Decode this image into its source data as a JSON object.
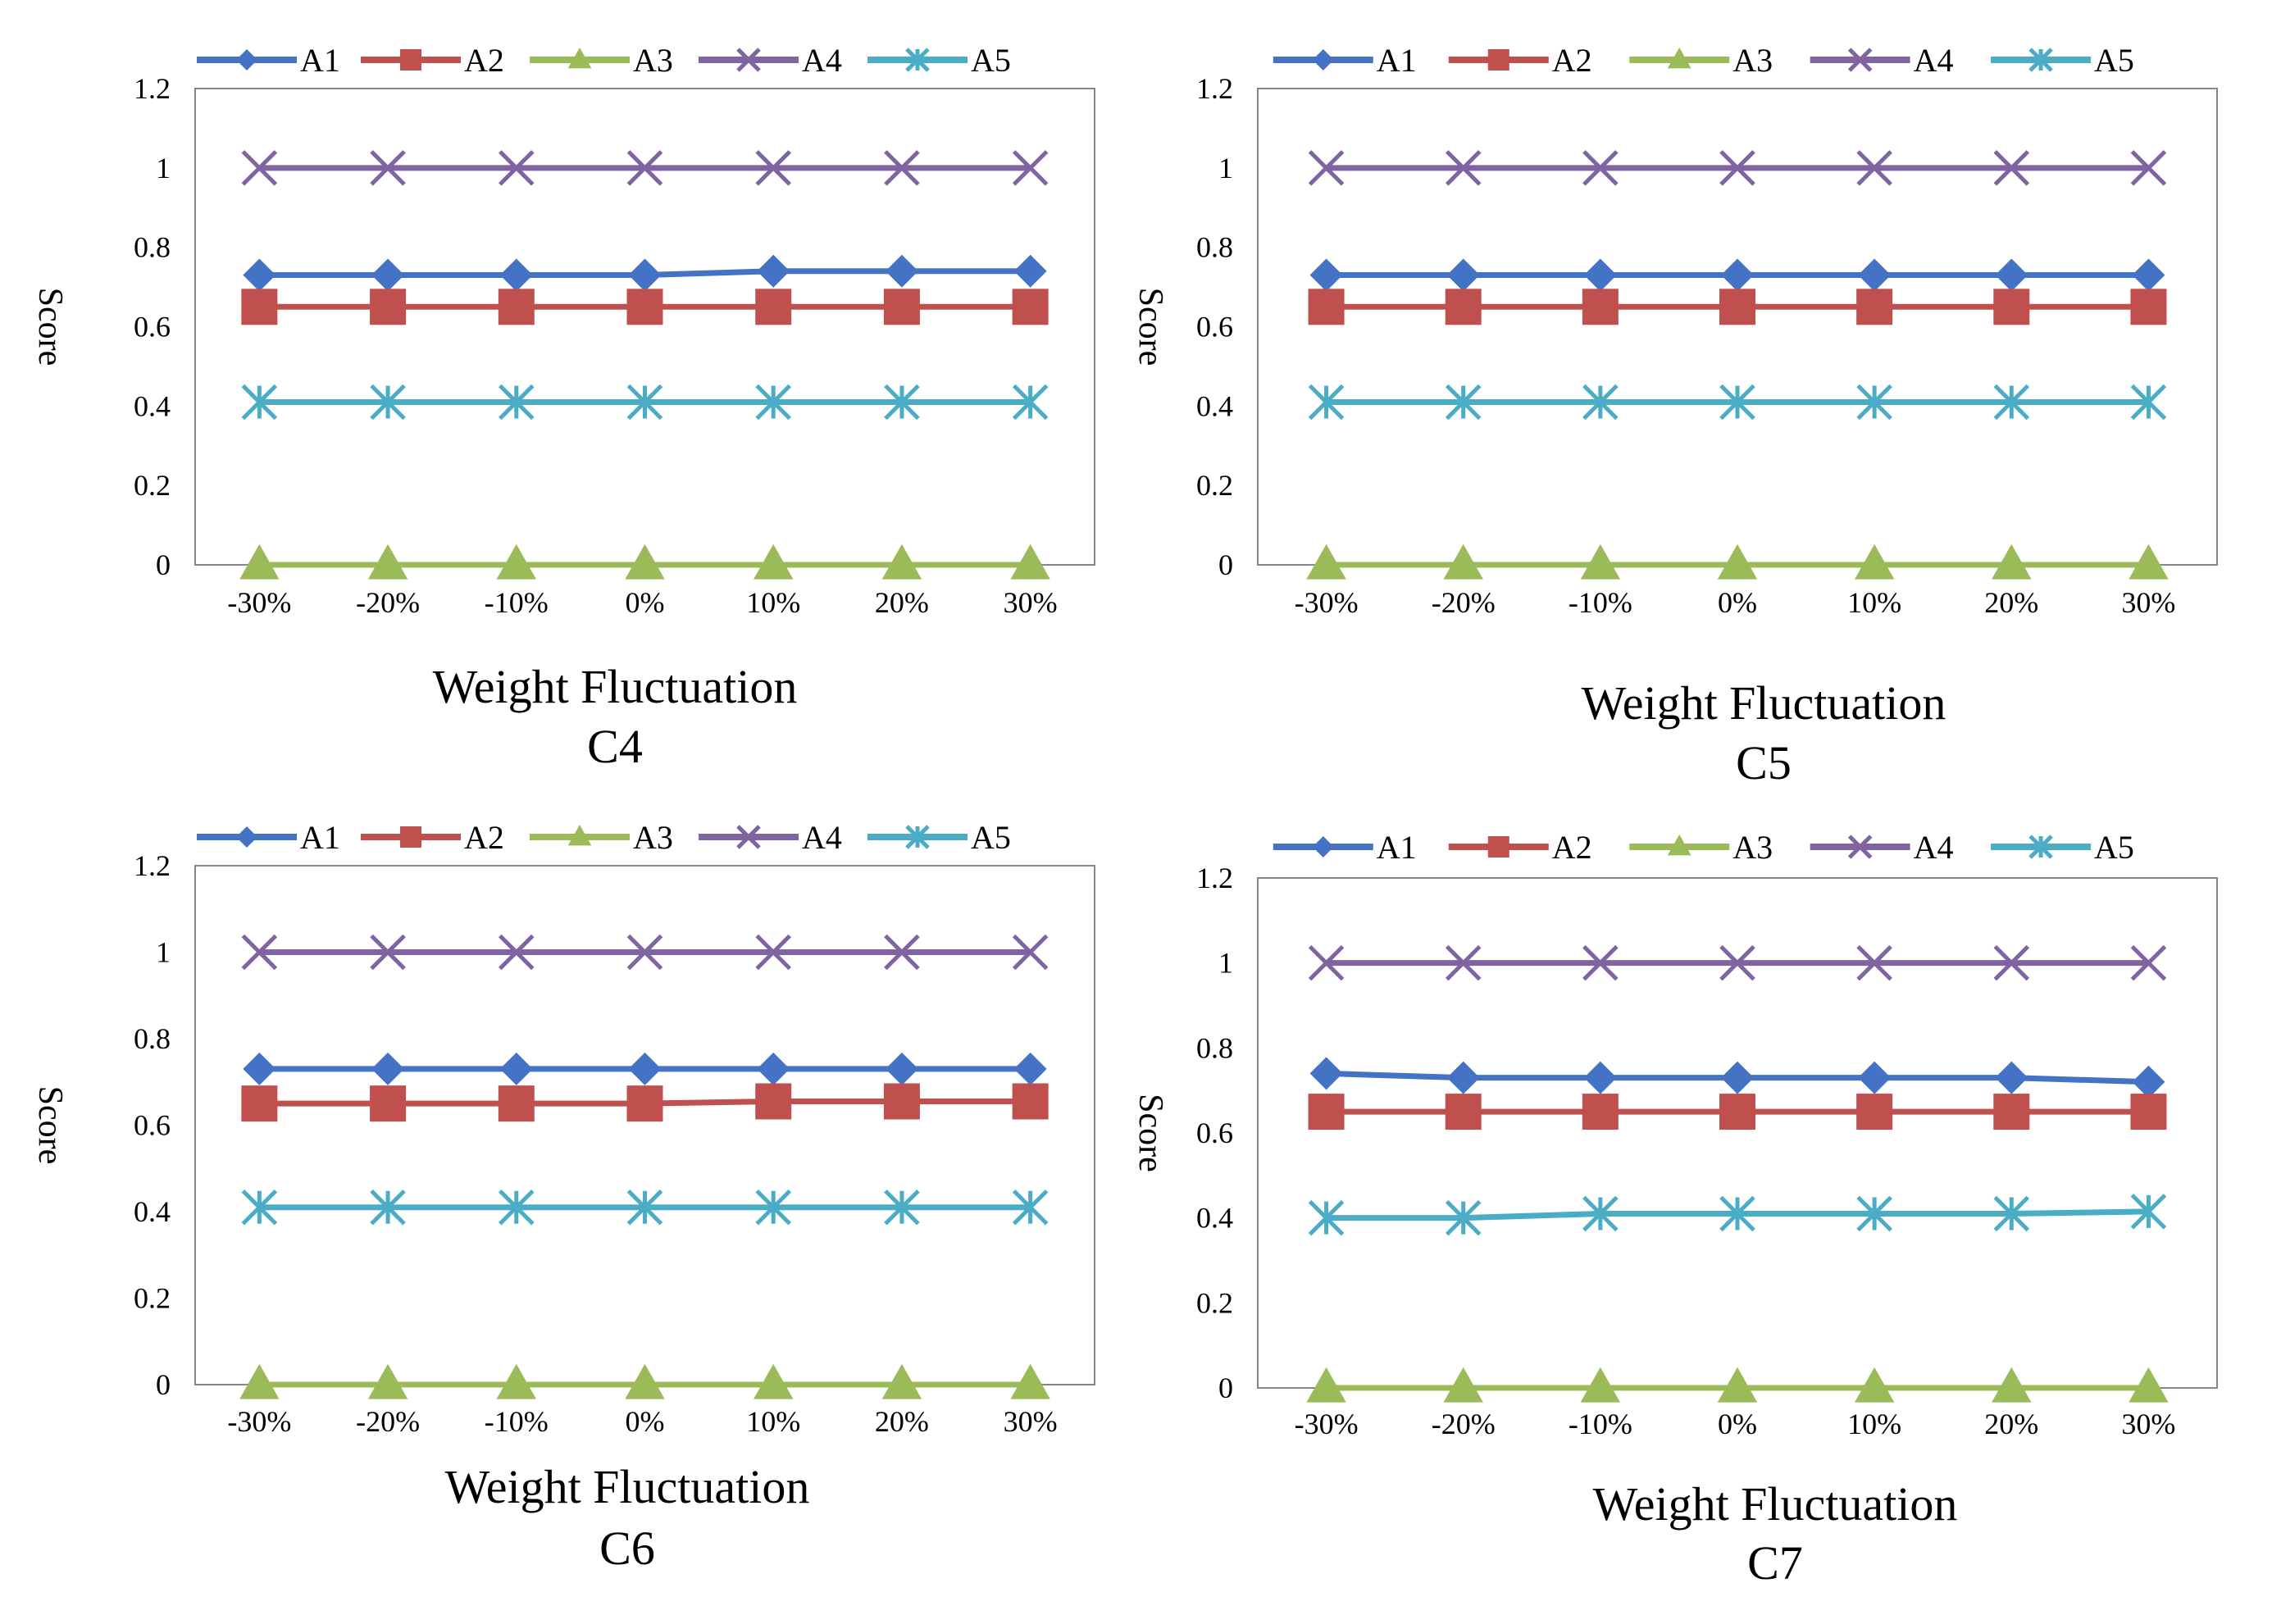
{
  "chart_data": [
    {
      "type": "line",
      "panel_label": "C4",
      "xlabel": "Weight Fluctuation",
      "ylabel": "Score",
      "categories": [
        "-30%",
        "-20%",
        "-10%",
        "0%",
        "10%",
        "20%",
        "30%"
      ],
      "ylim": [
        0,
        1.2
      ],
      "yticks": [
        "0",
        "0.2",
        "0.4",
        "0.6",
        "0.8",
        "1",
        "1.2"
      ],
      "legend_position": "top",
      "series": [
        {
          "name": "A1",
          "color": "#4472C4",
          "marker": "diamond",
          "values": [
            0.73,
            0.73,
            0.73,
            0.73,
            0.74,
            0.74,
            0.74
          ]
        },
        {
          "name": "A2",
          "color": "#C0504D",
          "marker": "square",
          "values": [
            0.65,
            0.65,
            0.65,
            0.65,
            0.65,
            0.65,
            0.65
          ]
        },
        {
          "name": "A3",
          "color": "#9BBB59",
          "marker": "triangle",
          "values": [
            0,
            0,
            0,
            0,
            0,
            0,
            0
          ]
        },
        {
          "name": "A4",
          "color": "#8064A2",
          "marker": "x",
          "values": [
            1,
            1,
            1,
            1,
            1,
            1,
            1
          ]
        },
        {
          "name": "A5",
          "color": "#4BACC6",
          "marker": "star",
          "values": [
            0.41,
            0.41,
            0.41,
            0.41,
            0.41,
            0.41,
            0.41
          ]
        }
      ]
    },
    {
      "type": "line",
      "panel_label": "C5",
      "xlabel": "Weight Fluctuation",
      "ylabel": "Score",
      "categories": [
        "-30%",
        "-20%",
        "-10%",
        "0%",
        "10%",
        "20%",
        "30%"
      ],
      "ylim": [
        0,
        1.2
      ],
      "yticks": [
        "0",
        "0.2",
        "0.4",
        "0.6",
        "0.8",
        "1",
        "1.2"
      ],
      "legend_position": "top",
      "series": [
        {
          "name": "A1",
          "color": "#4472C4",
          "marker": "diamond",
          "values": [
            0.73,
            0.73,
            0.73,
            0.73,
            0.73,
            0.73,
            0.73
          ]
        },
        {
          "name": "A2",
          "color": "#C0504D",
          "marker": "square",
          "values": [
            0.65,
            0.65,
            0.65,
            0.65,
            0.65,
            0.65,
            0.65
          ]
        },
        {
          "name": "A3",
          "color": "#9BBB59",
          "marker": "triangle",
          "values": [
            0,
            0,
            0,
            0,
            0,
            0,
            0
          ]
        },
        {
          "name": "A4",
          "color": "#8064A2",
          "marker": "x",
          "values": [
            1,
            1,
            1,
            1,
            1,
            1,
            1
          ]
        },
        {
          "name": "A5",
          "color": "#4BACC6",
          "marker": "star",
          "values": [
            0.41,
            0.41,
            0.41,
            0.41,
            0.41,
            0.41,
            0.41
          ]
        }
      ]
    },
    {
      "type": "line",
      "panel_label": "C6",
      "xlabel": "Weight Fluctuation",
      "ylabel": "Score",
      "categories": [
        "-30%",
        "-20%",
        "-10%",
        "0%",
        "10%",
        "20%",
        "30%"
      ],
      "ylim": [
        0,
        1.2
      ],
      "yticks": [
        "0",
        "0.2",
        "0.4",
        "0.6",
        "0.8",
        "1",
        "1.2"
      ],
      "legend_position": "top",
      "series": [
        {
          "name": "A1",
          "color": "#4472C4",
          "marker": "diamond",
          "values": [
            0.73,
            0.73,
            0.73,
            0.73,
            0.73,
            0.73,
            0.73
          ]
        },
        {
          "name": "A2",
          "color": "#C0504D",
          "marker": "square",
          "values": [
            0.65,
            0.65,
            0.65,
            0.65,
            0.655,
            0.655,
            0.655
          ]
        },
        {
          "name": "A3",
          "color": "#9BBB59",
          "marker": "triangle",
          "values": [
            0,
            0,
            0,
            0,
            0,
            0,
            0
          ]
        },
        {
          "name": "A4",
          "color": "#8064A2",
          "marker": "x",
          "values": [
            1,
            1,
            1,
            1,
            1,
            1,
            1
          ]
        },
        {
          "name": "A5",
          "color": "#4BACC6",
          "marker": "star",
          "values": [
            0.41,
            0.41,
            0.41,
            0.41,
            0.41,
            0.41,
            0.41
          ]
        }
      ]
    },
    {
      "type": "line",
      "panel_label": "C7",
      "xlabel": "Weight Fluctuation",
      "ylabel": "Score",
      "categories": [
        "-30%",
        "-20%",
        "-10%",
        "0%",
        "10%",
        "20%",
        "30%"
      ],
      "ylim": [
        0,
        1.2
      ],
      "yticks": [
        "0",
        "0.2",
        "0.4",
        "0.6",
        "0.8",
        "1",
        "1.2"
      ],
      "legend_position": "top",
      "series": [
        {
          "name": "A1",
          "color": "#4472C4",
          "marker": "diamond",
          "values": [
            0.74,
            0.73,
            0.73,
            0.73,
            0.73,
            0.73,
            0.72
          ]
        },
        {
          "name": "A2",
          "color": "#C0504D",
          "marker": "square",
          "values": [
            0.65,
            0.65,
            0.65,
            0.65,
            0.65,
            0.65,
            0.65
          ]
        },
        {
          "name": "A3",
          "color": "#9BBB59",
          "marker": "triangle",
          "values": [
            0,
            0,
            0,
            0,
            0,
            0,
            0
          ]
        },
        {
          "name": "A4",
          "color": "#8064A2",
          "marker": "x",
          "values": [
            1,
            1,
            1,
            1,
            1,
            1,
            1
          ]
        },
        {
          "name": "A5",
          "color": "#4BACC6",
          "marker": "star",
          "values": [
            0.4,
            0.4,
            0.41,
            0.41,
            0.41,
            0.41,
            0.415
          ]
        }
      ]
    }
  ]
}
